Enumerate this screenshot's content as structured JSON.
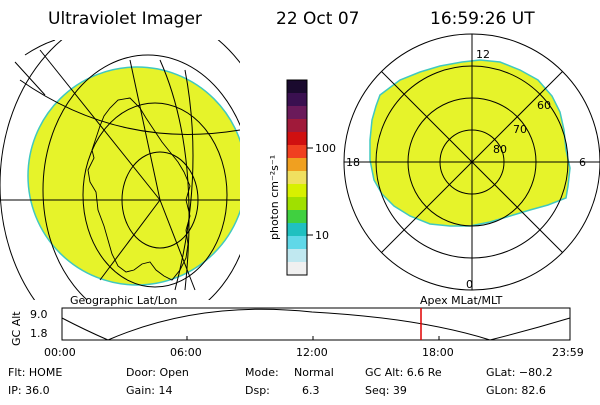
{
  "header": {
    "instrument": "Ultraviolet Imager",
    "date": "22 Oct 07",
    "time": "16:59:26 UT"
  },
  "colorbar": {
    "unit_label": "photon cm⁻²s⁻¹",
    "ticks": [
      "100",
      "10"
    ],
    "colors": [
      "#1a0a2e",
      "#3a1050",
      "#6a1a5a",
      "#a01a3a",
      "#d01010",
      "#f04020",
      "#f0a020",
      "#f0e060",
      "#d8f000",
      "#a0e000",
      "#40d040",
      "#20c0c0",
      "#60d8e8",
      "#c0e8f0",
      "#f0f0f0"
    ]
  },
  "left_panel": {
    "label": "Geographic Lat/Lon",
    "fill": "#e6f32a"
  },
  "right_panel": {
    "label": "Apex MLat/MLT",
    "fill": "#e6f32a",
    "mlt_labels": {
      "top": "12",
      "left": "18",
      "right": "6",
      "bottom": "0"
    },
    "lat_labels": [
      "60",
      "70",
      "80"
    ]
  },
  "altitude_plot": {
    "ylabel": "GC Alt",
    "yticks": [
      "9.0",
      "1.8"
    ],
    "xticks": [
      "00:00",
      "06:00",
      "12:00",
      "18:00",
      "23:59"
    ],
    "current_time_marker": "16:59:26"
  },
  "footer": {
    "flt": "Flt: HOME",
    "ip": "IP: 36.0",
    "door": "Door: Open",
    "gain": "Gain: 14",
    "mode_label": "Mode:",
    "mode_value": "Normal",
    "dsp_label": "Dsp:",
    "dsp_value": "6.3",
    "gcalt": "GC Alt: 6.6 Re",
    "seq": "Seq: 39",
    "glat": "GLat: −80.2",
    "glon": "GLon: 82.6"
  }
}
